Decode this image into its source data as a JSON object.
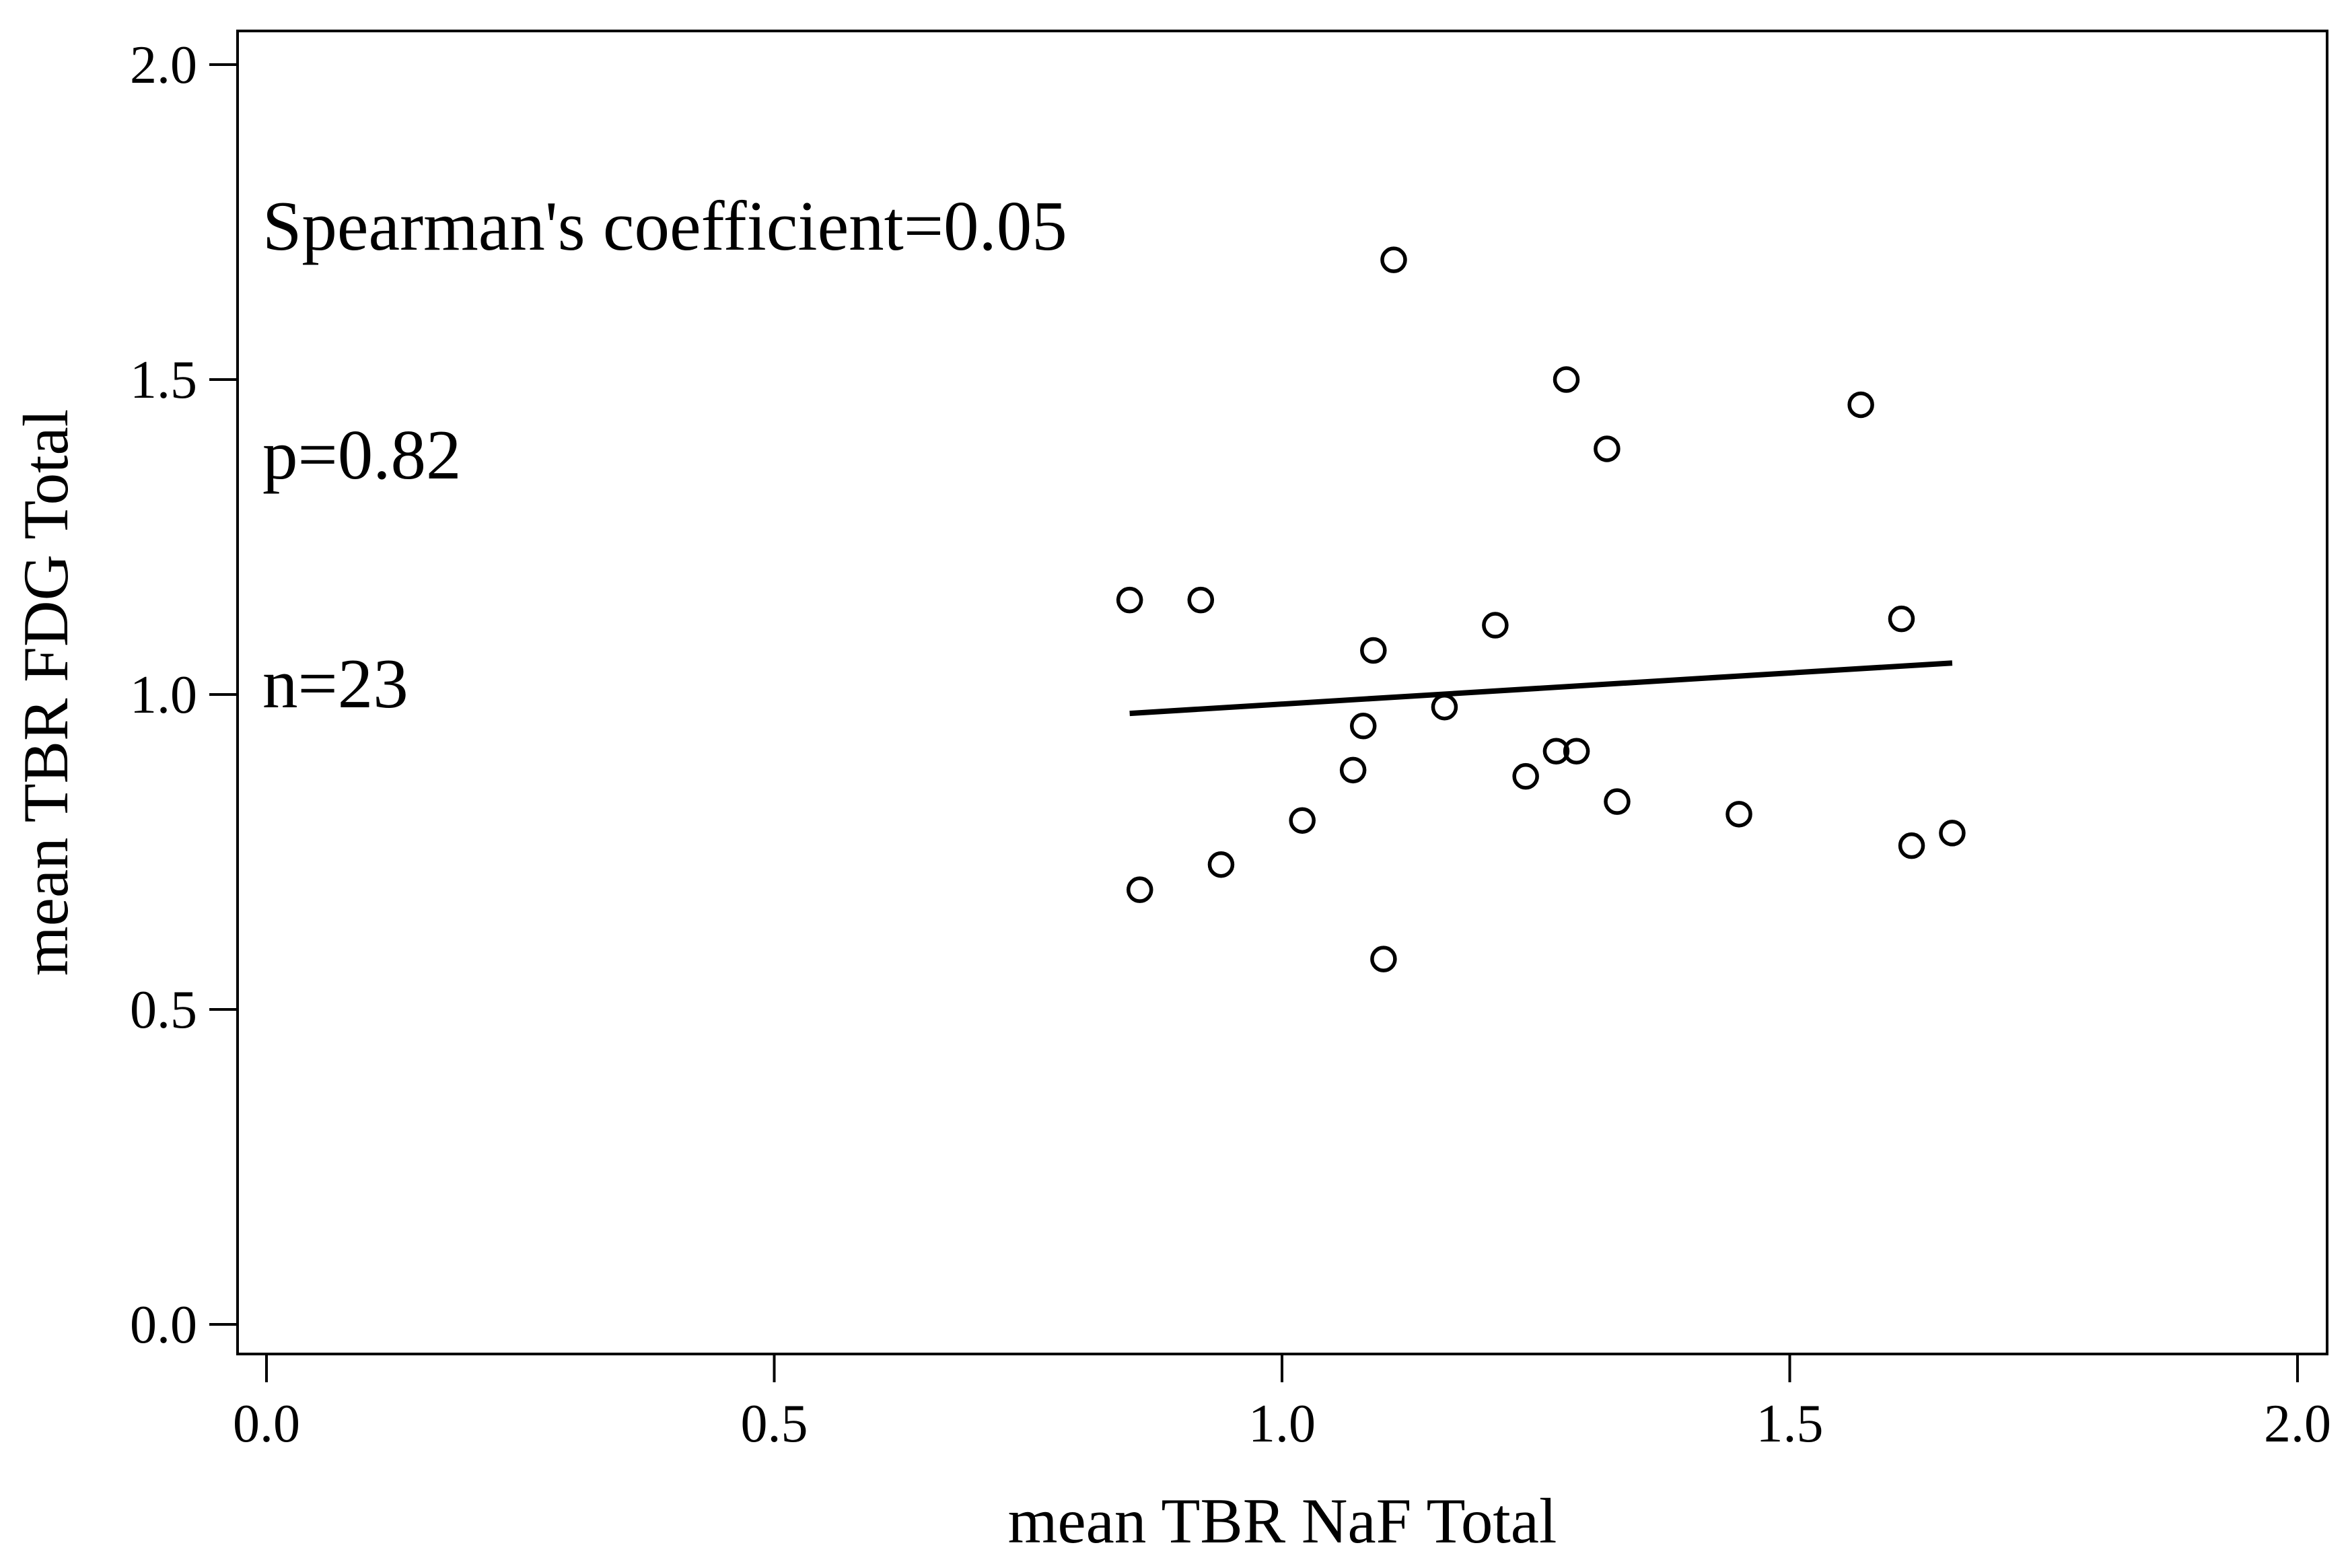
{
  "figure": {
    "background": "#ffffff",
    "foreground": "#000000"
  },
  "chart_data": {
    "type": "scatter",
    "title": "",
    "xlabel": "mean TBR NaF Total",
    "ylabel": "mean TBR FDG Total",
    "xlim": [
      0.0,
      2.0
    ],
    "ylim": [
      0.0,
      2.0
    ],
    "grid": false,
    "legend_position": "none",
    "marker": "open-circle",
    "annotation": [
      "Spearman's coefficient=0.05",
      "p=0.82",
      "n=23"
    ],
    "stats": {
      "spearman_coefficient": 0.05,
      "p_value": 0.82,
      "n": 23
    },
    "x_ticks": {
      "values": [
        0.0,
        0.5,
        1.0,
        1.5,
        2.0
      ],
      "labels": [
        "0.0",
        "0.5",
        "1.0",
        "1.5",
        "2.0"
      ]
    },
    "y_ticks": {
      "values": [
        0.0,
        0.5,
        1.0,
        1.5,
        2.0
      ],
      "labels": [
        "0.0",
        "0.5",
        "1.0",
        "1.5",
        "2.0"
      ]
    },
    "points": [
      [
        0.85,
        1.15
      ],
      [
        0.86,
        0.69
      ],
      [
        0.92,
        1.15
      ],
      [
        0.94,
        0.73
      ],
      [
        1.02,
        0.8
      ],
      [
        1.07,
        0.88
      ],
      [
        1.08,
        0.95
      ],
      [
        1.09,
        1.07
      ],
      [
        1.1,
        0.58
      ],
      [
        1.11,
        1.69
      ],
      [
        1.16,
        0.98
      ],
      [
        1.21,
        1.11
      ],
      [
        1.24,
        0.87
      ],
      [
        1.27,
        0.91
      ],
      [
        1.28,
        1.5
      ],
      [
        1.29,
        0.91
      ],
      [
        1.32,
        1.39
      ],
      [
        1.33,
        0.83
      ],
      [
        1.45,
        0.81
      ],
      [
        1.57,
        1.46
      ],
      [
        1.61,
        1.12
      ],
      [
        1.62,
        0.76
      ],
      [
        1.66,
        0.78
      ]
    ],
    "trendline": {
      "x1": 0.85,
      "y1": 0.97,
      "x2": 1.66,
      "y2": 1.05
    },
    "colors": {
      "points": "#000000",
      "trendline": "#000000",
      "frame": "#000000",
      "text": "#000000"
    }
  }
}
